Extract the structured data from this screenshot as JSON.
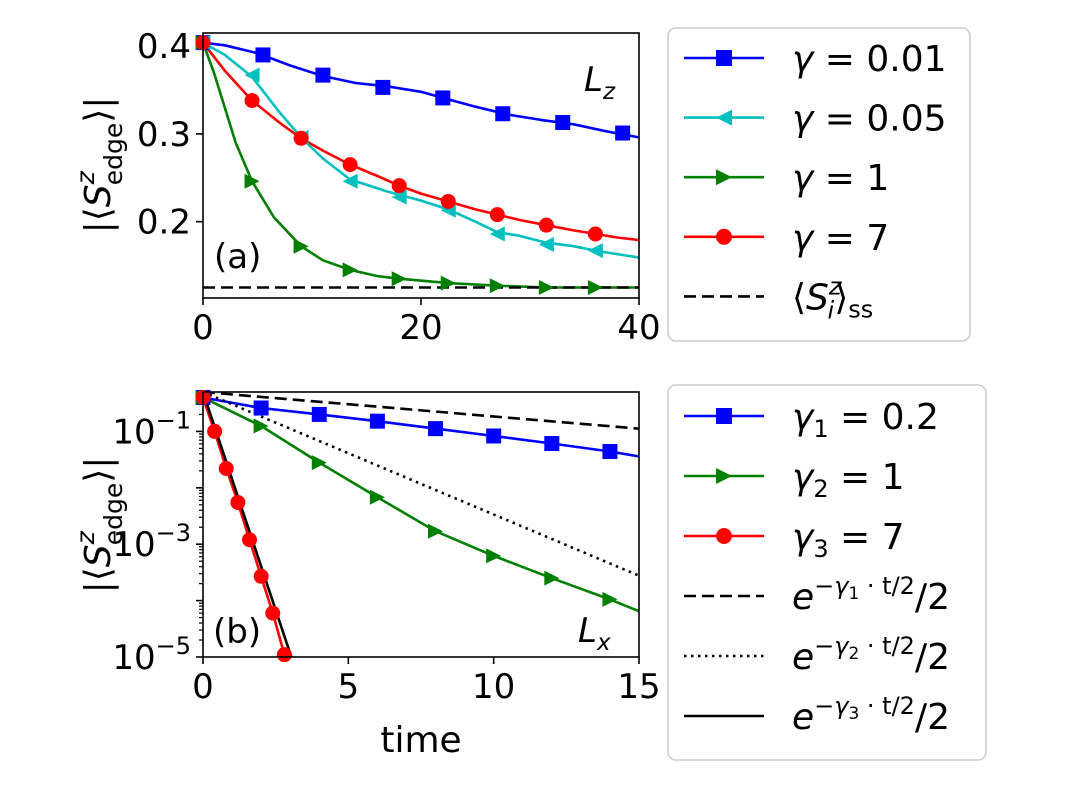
{
  "chart_data": [
    {
      "id": "a",
      "type": "line",
      "panel_label": "(a)",
      "corner_label": "L_z",
      "ylabel": "|⟨S^z_edge⟩|",
      "xlim": [
        0,
        40
      ],
      "ylim": [
        0.113,
        0.415
      ],
      "xticks": [
        0,
        20,
        40
      ],
      "xticklabels": [
        "0",
        "20",
        "40"
      ],
      "yticks": [
        0.2,
        0.3,
        0.4
      ],
      "yticklabels": [
        "0.2",
        "0.3",
        "0.4"
      ],
      "yscale": "linear",
      "series": [
        {
          "name": "γ = 0.01",
          "color": "#0000ff",
          "marker": "square",
          "x": [
            0,
            2,
            5,
            8,
            11,
            14,
            17,
            20,
            22,
            25,
            28,
            31,
            34,
            37,
            40
          ],
          "y": [
            0.404,
            0.401,
            0.392,
            0.378,
            0.366,
            0.358,
            0.354,
            0.348,
            0.341,
            0.331,
            0.322,
            0.316,
            0.311,
            0.303,
            0.296
          ],
          "markers_x": [
            0,
            5.5,
            11,
            16.5,
            22,
            27.5,
            33,
            38.5
          ],
          "markers_y": [
            0.404,
            0.39,
            0.367,
            0.353,
            0.341,
            0.323,
            0.313,
            0.301
          ]
        },
        {
          "name": "γ = 0.05",
          "color": "#00bfbf",
          "marker": "triangle-left",
          "x": [
            0,
            2,
            4.5,
            7,
            9,
            11,
            13.5,
            17,
            20,
            22.5,
            25,
            27,
            29,
            31.5,
            34,
            36,
            38,
            40
          ],
          "y": [
            0.404,
            0.39,
            0.365,
            0.325,
            0.296,
            0.272,
            0.248,
            0.234,
            0.224,
            0.214,
            0.2,
            0.188,
            0.184,
            0.176,
            0.172,
            0.167,
            0.163,
            0.159
          ],
          "markers_x": [
            0,
            4.5,
            9,
            13.5,
            18,
            22.5,
            27,
            31.5,
            36
          ],
          "markers_y": [
            0.404,
            0.367,
            0.296,
            0.246,
            0.228,
            0.213,
            0.186,
            0.174,
            0.167
          ]
        },
        {
          "name": "γ = 1",
          "color": "#008000",
          "marker": "triangle-right",
          "x": [
            0,
            1,
            2,
            3,
            4.5,
            6.5,
            9,
            11,
            13.5,
            16,
            18,
            22.5,
            27,
            31.5,
            36,
            40
          ],
          "y": [
            0.404,
            0.37,
            0.33,
            0.29,
            0.246,
            0.205,
            0.172,
            0.156,
            0.145,
            0.138,
            0.135,
            0.13,
            0.127,
            0.125,
            0.125,
            0.125
          ],
          "markers_x": [
            0,
            4.5,
            9,
            13.5,
            18,
            22.5,
            27,
            31.5,
            36
          ],
          "markers_y": [
            0.404,
            0.246,
            0.172,
            0.145,
            0.135,
            0.13,
            0.127,
            0.125,
            0.125
          ]
        },
        {
          "name": "γ = 7",
          "color": "#ff0000",
          "marker": "circle",
          "x": [
            0,
            2,
            4.5,
            7,
            9,
            11,
            13.5,
            16,
            18,
            20,
            22.5,
            25,
            27,
            29,
            31.5,
            34,
            36,
            38,
            40
          ],
          "y": [
            0.404,
            0.372,
            0.338,
            0.313,
            0.295,
            0.281,
            0.265,
            0.252,
            0.241,
            0.232,
            0.223,
            0.214,
            0.208,
            0.202,
            0.196,
            0.19,
            0.186,
            0.182,
            0.179
          ],
          "markers_x": [
            0,
            4.5,
            9,
            13.5,
            18,
            22.5,
            27,
            31.5,
            36
          ],
          "markers_y": [
            0.404,
            0.338,
            0.295,
            0.265,
            0.241,
            0.223,
            0.208,
            0.196,
            0.186
          ]
        },
        {
          "name": "⟨S^z_i⟩_ss",
          "color": "#000000",
          "marker": "none",
          "dash": "dashed",
          "x": [
            0,
            40
          ],
          "y": [
            0.125,
            0.125
          ]
        }
      ],
      "legend": {
        "placement": "right",
        "entries": [
          {
            "parts": [
              {
                "t": "γ",
                "s": "i"
              },
              {
                "t": " = 0.01"
              }
            ]
          },
          {
            "parts": [
              {
                "t": "γ",
                "s": "i"
              },
              {
                "t": " = 0.05"
              }
            ]
          },
          {
            "parts": [
              {
                "t": "γ",
                "s": "i"
              },
              {
                "t": " = 1"
              }
            ]
          },
          {
            "parts": [
              {
                "t": "γ",
                "s": "i"
              },
              {
                "t": " = 7"
              }
            ]
          },
          {
            "parts": [
              {
                "t": "⟨"
              },
              {
                "t": "S",
                "s": "i"
              },
              {
                "t": "z",
                "s": "isup"
              },
              {
                "t": "i",
                "s": "isubfirst"
              },
              {
                "t": "⟩"
              },
              {
                "t": "ss",
                "s": "sub"
              }
            ]
          }
        ]
      }
    },
    {
      "id": "b",
      "type": "line",
      "panel_label": "(b)",
      "corner_label": "L_x",
      "xlabel": "time",
      "ylabel": "|⟨S^z_edge⟩|",
      "xlim": [
        0,
        15
      ],
      "ylim": [
        1e-05,
        0.5
      ],
      "yscale": "log",
      "xticks": [
        0,
        5,
        10,
        15
      ],
      "xticklabels": [
        "0",
        "5",
        "10",
        "15"
      ],
      "yticks": [
        1e-05,
        0.001,
        0.1
      ],
      "yticklabels": [
        [
          "10",
          "−5"
        ],
        [
          "10",
          "−3"
        ],
        [
          "10",
          "−1"
        ]
      ],
      "series": [
        {
          "name": "γ1 = 0.2",
          "color": "#0000ff",
          "marker": "square",
          "x": [
            0,
            2,
            4,
            6,
            8,
            10,
            12,
            14,
            15
          ],
          "y": [
            0.4,
            0.26,
            0.2,
            0.152,
            0.112,
            0.083,
            0.061,
            0.044,
            0.036
          ],
          "markers_x": [
            0,
            2,
            4,
            6,
            8,
            10,
            12,
            14
          ],
          "markers_y": [
            0.4,
            0.26,
            0.2,
            0.152,
            0.112,
            0.083,
            0.061,
            0.044
          ]
        },
        {
          "name": "γ2 = 1",
          "color": "#008000",
          "marker": "triangle-right",
          "x": [
            0,
            2,
            4,
            6,
            8,
            10,
            12,
            14,
            15
          ],
          "y": [
            0.4,
            0.125,
            0.028,
            0.0068,
            0.0017,
            0.00062,
            0.00025,
            0.000105,
            6.5e-05
          ],
          "markers_x": [
            0,
            2,
            4,
            6,
            8,
            10,
            12,
            14
          ],
          "markers_y": [
            0.4,
            0.125,
            0.028,
            0.0068,
            0.0017,
            0.00062,
            0.00025,
            0.000105
          ]
        },
        {
          "name": "γ3 = 7",
          "color": "#ff0000",
          "marker": "circle",
          "x": [
            0,
            0.4,
            0.8,
            1.2,
            1.6,
            2.0,
            2.4,
            2.8
          ],
          "y": [
            0.4,
            0.1,
            0.022,
            0.0055,
            0.0012,
            0.00027,
            6e-05,
            1.1e-05
          ],
          "markers_x": [
            0,
            0.4,
            0.8,
            1.2,
            1.6,
            2.0,
            2.4,
            2.8
          ],
          "markers_y": [
            0.4,
            0.1,
            0.022,
            0.0055,
            0.0012,
            0.00027,
            6e-05,
            1.1e-05
          ]
        },
        {
          "name": "e^{-γ1·t/2}/2",
          "color": "#000000",
          "marker": "none",
          "dash": "dashed",
          "x": [
            0,
            15
          ],
          "y": [
            0.5,
            0.1116
          ]
        },
        {
          "name": "e^{-γ2·t/2}/2",
          "color": "#000000",
          "marker": "none",
          "dash": "dotted",
          "x": [
            0,
            15
          ],
          "y": [
            0.5,
            0.000277
          ]
        },
        {
          "name": "e^{-γ3·t/2}/2",
          "color": "#000000",
          "marker": "none",
          "dash": "solid",
          "x": [
            0,
            3.04
          ],
          "y": [
            0.5,
            9.91e-06
          ]
        }
      ],
      "legend": {
        "placement": "right",
        "entries": [
          {
            "parts": [
              {
                "t": "γ",
                "s": "i"
              },
              {
                "t": "1",
                "s": "sub"
              },
              {
                "t": " = 0.2"
              }
            ]
          },
          {
            "parts": [
              {
                "t": "γ",
                "s": "i"
              },
              {
                "t": "2",
                "s": "sub"
              },
              {
                "t": " = 1"
              }
            ]
          },
          {
            "parts": [
              {
                "t": "γ",
                "s": "i"
              },
              {
                "t": "3",
                "s": "sub"
              },
              {
                "t": " = 7"
              }
            ]
          },
          {
            "parts": [
              {
                "t": "e",
                "s": "i"
              },
              {
                "t": "−γ",
                "s": "isup"
              },
              {
                "t": "1",
                "s": "supsub"
              },
              {
                "t": " · t/2",
                "s": "supback"
              },
              {
                "t": "/2"
              }
            ]
          },
          {
            "parts": [
              {
                "t": "e",
                "s": "i"
              },
              {
                "t": "−γ",
                "s": "isup"
              },
              {
                "t": "2",
                "s": "supsub"
              },
              {
                "t": " · t/2",
                "s": "supback"
              },
              {
                "t": "/2"
              }
            ]
          },
          {
            "parts": [
              {
                "t": "e",
                "s": "i"
              },
              {
                "t": "−γ",
                "s": "isup"
              },
              {
                "t": "3",
                "s": "supsub"
              },
              {
                "t": " · t/2",
                "s": "supback"
              },
              {
                "t": "/2"
              }
            ]
          }
        ]
      }
    }
  ]
}
